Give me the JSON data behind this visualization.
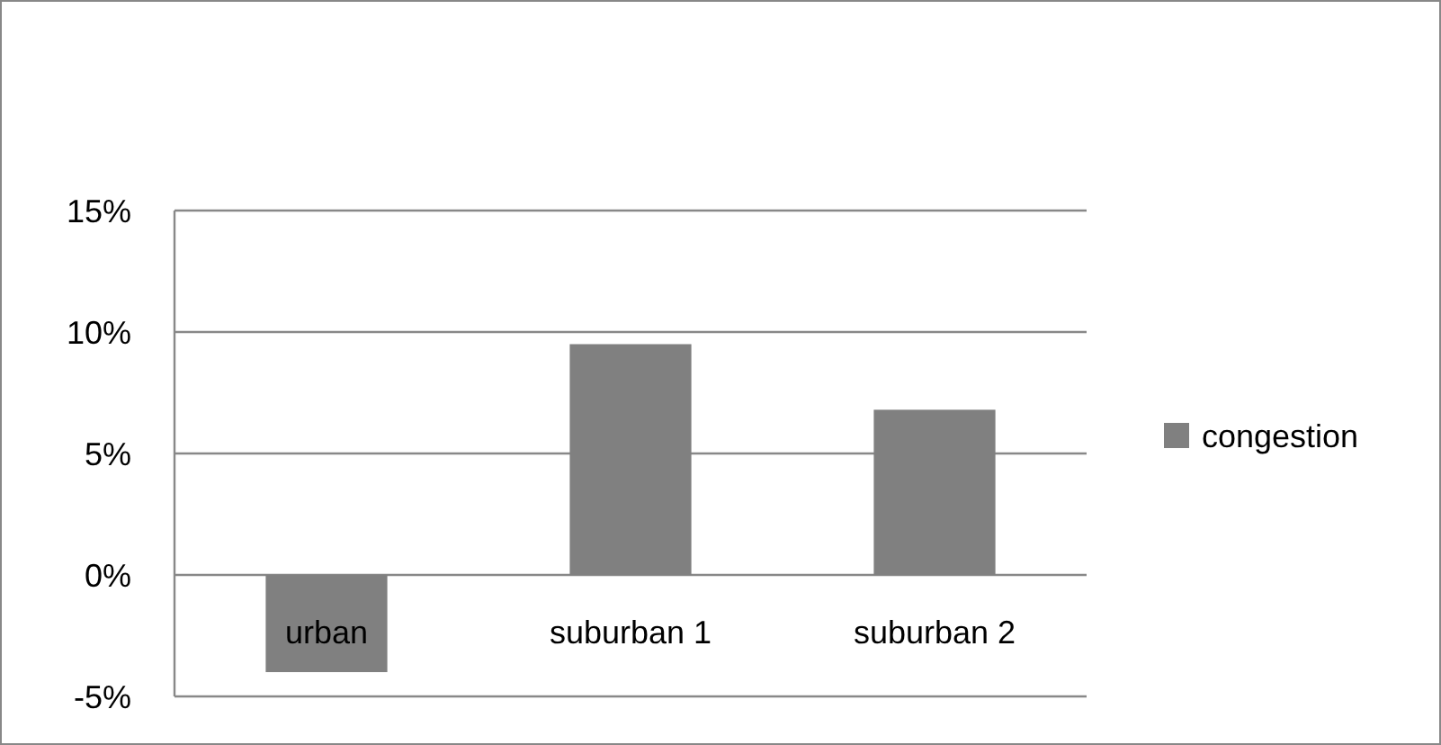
{
  "chart_data": {
    "type": "bar",
    "categories": [
      "urban",
      "suburban 1",
      "suburban 2"
    ],
    "series": [
      {
        "name": "congestion",
        "color": "#808080",
        "values": [
          -4.0,
          9.5,
          6.8
        ]
      }
    ],
    "ylim": [
      -5,
      15
    ],
    "yticks": [
      {
        "value": -5,
        "label": "-5%"
      },
      {
        "value": 0,
        "label": "0%"
      },
      {
        "value": 5,
        "label": "5%"
      },
      {
        "value": 10,
        "label": "10%"
      },
      {
        "value": 15,
        "label": "15%"
      }
    ],
    "grid": "y",
    "legend": "right"
  }
}
